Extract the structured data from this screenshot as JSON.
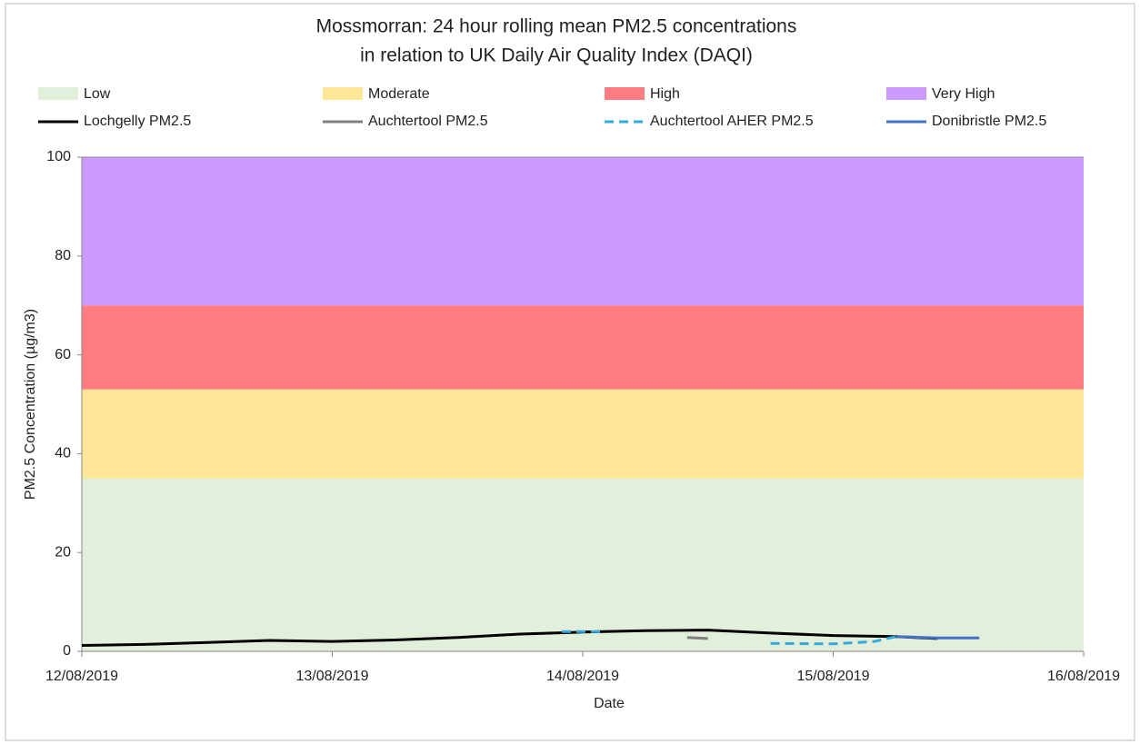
{
  "chart_data": {
    "type": "line",
    "title": [
      "Mossmorran: 24 hour rolling mean PM2.5 concentrations",
      "in relation to UK Daily Air Quality Index (DAQI)"
    ],
    "xlabel": "Date",
    "ylabel": "PM2.5 Concentration (µg/m3)",
    "bands": [
      {
        "name": "Low",
        "color": "#e2efda",
        "from": 0,
        "to": 35
      },
      {
        "name": "Moderate",
        "color": "#ffe699",
        "from": 35,
        "to": 53
      },
      {
        "name": "High",
        "color": "#ff7c80",
        "from": 53,
        "to": 70
      },
      {
        "name": "Very High",
        "color": "#cc99ff",
        "from": 70,
        "to": 100
      }
    ],
    "series": [
      {
        "name": "Lochgelly PM2.5",
        "color": "#000000",
        "dash": false,
        "x": [
          "2019-08-12T00:00",
          "2019-08-12T06:00",
          "2019-08-12T12:00",
          "2019-08-12T18:00",
          "2019-08-13T00:00",
          "2019-08-13T06:00",
          "2019-08-13T12:00",
          "2019-08-13T18:00",
          "2019-08-14T00:00",
          "2019-08-14T06:00",
          "2019-08-14T12:00",
          "2019-08-14T18:00",
          "2019-08-15T00:00",
          "2019-08-15T06:00",
          "2019-08-15T10:00"
        ],
        "values": [
          1.2,
          1.4,
          1.8,
          2.2,
          2.0,
          2.3,
          2.8,
          3.5,
          3.9,
          4.2,
          4.3,
          3.7,
          3.2,
          3.0,
          2.6
        ]
      },
      {
        "name": "Auchtertool PM2.5",
        "color": "#808080",
        "dash": false,
        "x": [
          "2019-08-14T10:00",
          "2019-08-14T12:00",
          "2019-08-15T06:00",
          "2019-08-15T12:00"
        ],
        "values": [
          2.8,
          2.6,
          null,
          3.1
        ]
      },
      {
        "name": "Auchtertool AHER PM2.5",
        "color": "#33aadd",
        "dash": true,
        "x": [
          "2019-08-13T22:00",
          "2019-08-14T02:00",
          "2019-08-14T14:00",
          "2019-08-14T18:00",
          "2019-08-15T00:00",
          "2019-08-15T04:00",
          "2019-08-15T06:00"
        ],
        "values": [
          4.0,
          4.0,
          null,
          1.6,
          1.5,
          2.0,
          3.0
        ]
      },
      {
        "name": "Donibristle PM2.5",
        "color": "#4472c4",
        "dash": false,
        "x": [
          "2019-08-15T06:00",
          "2019-08-15T10:00",
          "2019-08-15T14:00"
        ],
        "values": [
          3.0,
          2.7,
          2.7
        ]
      }
    ],
    "xlim": [
      "2019-08-12T00:00",
      "2019-08-16T00:00"
    ],
    "xticks": [
      {
        "value": "2019-08-12T00:00",
        "label": "12/08/2019"
      },
      {
        "value": "2019-08-13T00:00",
        "label": "13/08/2019"
      },
      {
        "value": "2019-08-14T00:00",
        "label": "14/08/2019"
      },
      {
        "value": "2019-08-15T00:00",
        "label": "15/08/2019"
      },
      {
        "value": "2019-08-16T00:00",
        "label": "16/08/2019"
      }
    ],
    "ylim": [
      0,
      100
    ],
    "yticks": [
      0,
      20,
      40,
      60,
      80,
      100
    ]
  }
}
